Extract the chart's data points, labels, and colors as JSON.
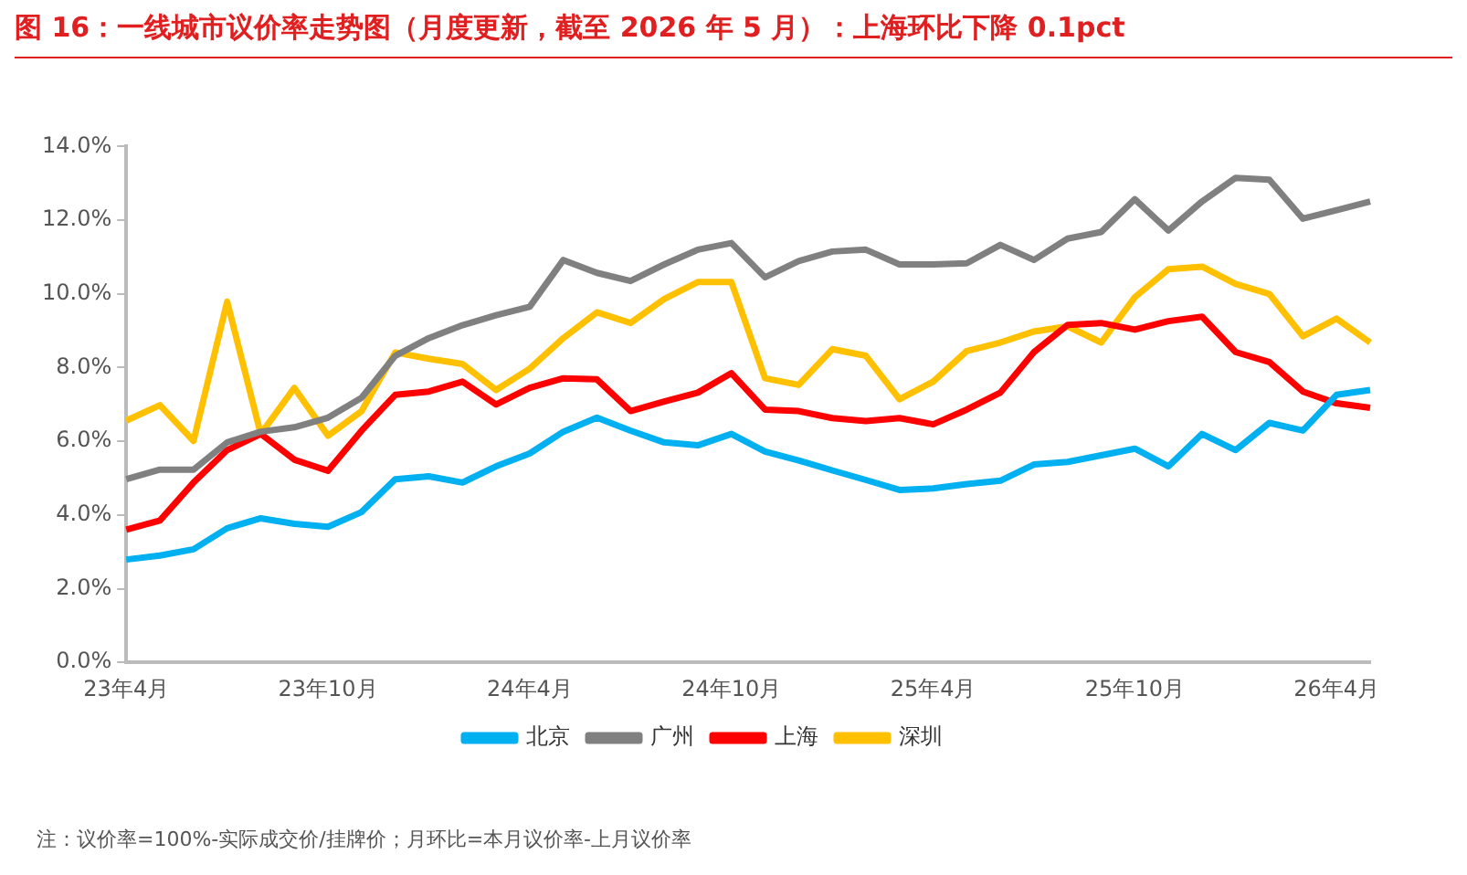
{
  "chart_data": {
    "type": "line",
    "title": "图 16：一线城市议价率走势图（月度更新，截至 2026 年 5 月）：上海环比下降 0.1pct",
    "categories": [
      "23年4月",
      null,
      null,
      null,
      null,
      null,
      "23年10月",
      null,
      null,
      null,
      null,
      null,
      "24年4月",
      null,
      null,
      null,
      null,
      null,
      "24年10月",
      null,
      null,
      null,
      null,
      null,
      "25年4月",
      null,
      null,
      null,
      null,
      null,
      "25年10月",
      null,
      null,
      null,
      null,
      null,
      "26年4月",
      null
    ],
    "series": [
      {
        "name": "北京",
        "color": "#00b0f0",
        "values": [
          2.79,
          2.9,
          3.07,
          3.64,
          3.91,
          3.76,
          3.68,
          4.08,
          4.97,
          5.05,
          4.88,
          5.32,
          5.67,
          6.26,
          6.64,
          6.29,
          5.97,
          5.89,
          6.2,
          5.72,
          5.48,
          5.21,
          4.95,
          4.68,
          4.72,
          4.84,
          4.93,
          5.37,
          5.44,
          5.62,
          5.8,
          5.32,
          6.2,
          5.76,
          6.5,
          6.29,
          7.26,
          7.39
        ]
      },
      {
        "name": "广州",
        "color": "#808080",
        "values": [
          4.97,
          5.23,
          5.23,
          5.97,
          6.26,
          6.38,
          6.64,
          7.18,
          8.32,
          8.8,
          9.15,
          9.42,
          9.65,
          10.92,
          10.57,
          10.35,
          10.8,
          11.2,
          11.38,
          10.45,
          10.89,
          11.15,
          11.2,
          10.8,
          10.8,
          10.83,
          11.33,
          10.92,
          11.5,
          11.68,
          12.57,
          11.72,
          12.51,
          13.15,
          13.1,
          12.04,
          12.27,
          12.51
        ]
      },
      {
        "name": "上海",
        "color": "#ff0000",
        "values": [
          3.6,
          3.85,
          4.88,
          5.76,
          6.2,
          5.5,
          5.2,
          6.29,
          7.26,
          7.35,
          7.62,
          7.0,
          7.45,
          7.71,
          7.68,
          6.82,
          7.08,
          7.32,
          7.85,
          6.86,
          6.82,
          6.63,
          6.55,
          6.63,
          6.46,
          6.86,
          7.32,
          8.42,
          9.16,
          9.21,
          9.03,
          9.26,
          9.38,
          8.42,
          8.15,
          7.35,
          7.03,
          6.91
        ]
      },
      {
        "name": "深圳",
        "color": "#ffc000",
        "values": [
          6.56,
          6.98,
          6.01,
          9.79,
          6.2,
          7.45,
          6.15,
          6.82,
          8.41,
          8.24,
          8.1,
          7.39,
          7.97,
          8.8,
          9.5,
          9.21,
          9.86,
          10.32,
          10.32,
          7.71,
          7.53,
          8.5,
          8.32,
          7.14,
          7.62,
          8.45,
          8.68,
          8.98,
          9.12,
          8.68,
          9.91,
          10.67,
          10.74,
          10.27,
          10.0,
          8.85,
          9.33,
          8.68
        ]
      }
    ],
    "ylim": [
      0,
      14
    ],
    "yticks": [
      {
        "value": 0,
        "label": "0.0%"
      },
      {
        "value": 2,
        "label": "2.0%"
      },
      {
        "value": 4,
        "label": "4.0%"
      },
      {
        "value": 6,
        "label": "6.0%"
      },
      {
        "value": 8,
        "label": "8.0%"
      },
      {
        "value": 10,
        "label": "10.0%"
      },
      {
        "value": 12,
        "label": "12.0%"
      },
      {
        "value": 14,
        "label": "14.0%"
      }
    ],
    "grid": false,
    "legend": "bottom",
    "marker": "none",
    "line_style": "solid",
    "annotations": [
      "注：议价率=100%-实际成交价/挂牌价；月环比=本月议价率-上月议价率"
    ]
  }
}
